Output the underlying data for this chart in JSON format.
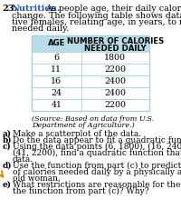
{
  "problem_number": "23.",
  "topic": "Nutrition.",
  "intro_lines": [
    "As people age, their daily caloric needs",
    "change. The following table shows data for physically ac-",
    "tive females, relating age, in years, to number of calorie",
    "needed daily."
  ],
  "col1_header": "AGE",
  "col2_header_line1": "NUMBER OF CALORIES",
  "col2_header_line2": "NEEDED DAILY",
  "ages": [
    6,
    11,
    16,
    24,
    41
  ],
  "calories": [
    1800,
    2200,
    2400,
    2400,
    2200
  ],
  "source_line1": "(Source: Based on data from U.S.",
  "source_line2": "Department of Agriculture.)",
  "parts": [
    {
      "label": "a)",
      "lines": [
        "Make a scatterplot of the data."
      ]
    },
    {
      "label": "b)",
      "lines": [
        "Do the data appear to fit a quadratic function?"
      ]
    },
    {
      "label": "c)",
      "lines": [
        "Using the data points (6, 1800), (16, 2400), and",
        "(41, 2200), find a quadratic function that fits the",
        "data."
      ]
    },
    {
      "label": "d)",
      "lines": [
        "Use the function from part (c) to predict the number",
        "of calories needed daily by a physically active 30-yr-",
        "old woman."
      ]
    },
    {
      "label": "e)",
      "lines": [
        "What restrictions are reasonable for the domain of",
        "the function from part (c)? Why?"
      ]
    }
  ],
  "header_bg": "#b8dce8",
  "table_bg": "#ffffff",
  "border_color": "#9fcfdf",
  "topic_color": "#2255aa",
  "background": "#ffffff",
  "fs_problem": 7.0,
  "fs_intro": 6.8,
  "fs_header": 6.2,
  "fs_table": 6.8,
  "fs_source": 5.8,
  "fs_parts": 6.5
}
